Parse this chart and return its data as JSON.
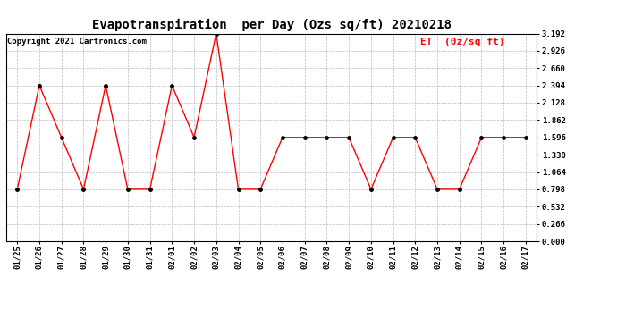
{
  "title": "Evapotranspiration  per Day (Ozs sq/ft) 20210218",
  "copyright": "Copyright 2021 Cartronics.com",
  "legend_label": "ET  (0z/sq ft)",
  "x_labels": [
    "01/25",
    "01/26",
    "01/27",
    "01/28",
    "01/29",
    "01/30",
    "01/31",
    "02/01",
    "02/02",
    "02/03",
    "02/04",
    "02/05",
    "02/06",
    "02/07",
    "02/08",
    "02/09",
    "02/10",
    "02/11",
    "02/12",
    "02/13",
    "02/14",
    "02/15",
    "02/16",
    "02/17"
  ],
  "y_values": [
    0.798,
    2.394,
    1.596,
    0.798,
    2.394,
    0.798,
    0.798,
    2.394,
    1.596,
    3.192,
    0.798,
    0.798,
    1.596,
    1.596,
    1.596,
    1.596,
    0.798,
    1.596,
    1.596,
    0.798,
    0.798,
    1.596,
    1.596,
    1.596
  ],
  "line_color": "red",
  "marker_color": "black",
  "ylim_min": 0.0,
  "ylim_max": 3.192,
  "yticks": [
    0.0,
    0.266,
    0.532,
    0.798,
    1.064,
    1.33,
    1.596,
    1.862,
    2.128,
    2.394,
    2.66,
    2.926,
    3.192
  ],
  "bg_color": "#ffffff",
  "grid_color": "#bbbbbb",
  "title_fontsize": 10,
  "copyright_fontsize": 6.5,
  "legend_fontsize": 8,
  "tick_fontsize": 6.5
}
